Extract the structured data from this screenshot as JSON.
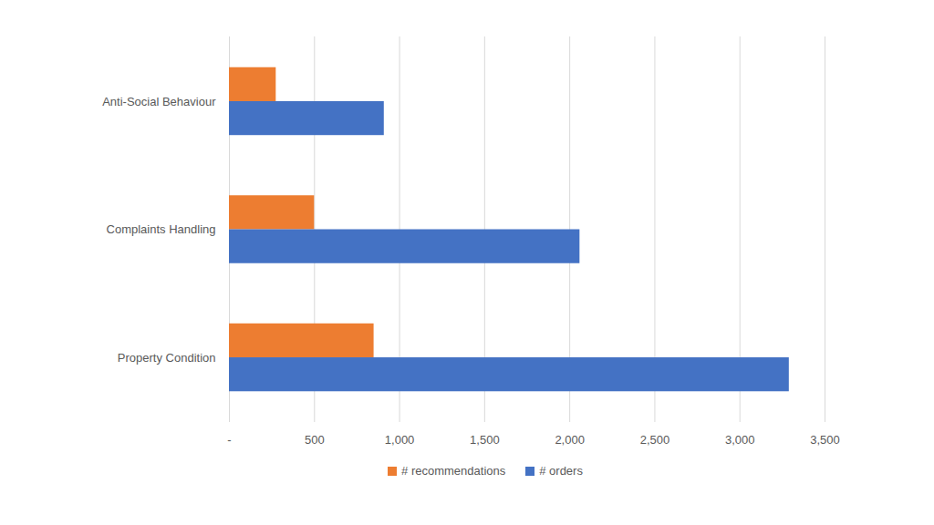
{
  "chart_data": {
    "type": "bar",
    "orientation": "horizontal",
    "categories": [
      "Anti-Social Behaviour",
      "Complaints Handling",
      "Property Condition"
    ],
    "series": [
      {
        "name": "# recommendations",
        "color": "#ed7d31",
        "values": [
          275,
          500,
          850
        ]
      },
      {
        "name": "# orders",
        "color": "#4472c4",
        "values": [
          910,
          2060,
          3290
        ]
      }
    ],
    "xlim": [
      0,
      3500
    ],
    "xticks": [
      {
        "value": 0,
        "label": "-"
      },
      500,
      {
        "value": 1000,
        "label": "1,000"
      },
      {
        "value": 1500,
        "label": "1,500"
      },
      {
        "value": 2000,
        "label": "2,000"
      },
      {
        "value": 2500,
        "label": "2,500"
      },
      {
        "value": 3000,
        "label": "3,000"
      },
      {
        "value": 3500,
        "label": "3,500"
      }
    ],
    "grid": true,
    "legend": "bottom"
  }
}
